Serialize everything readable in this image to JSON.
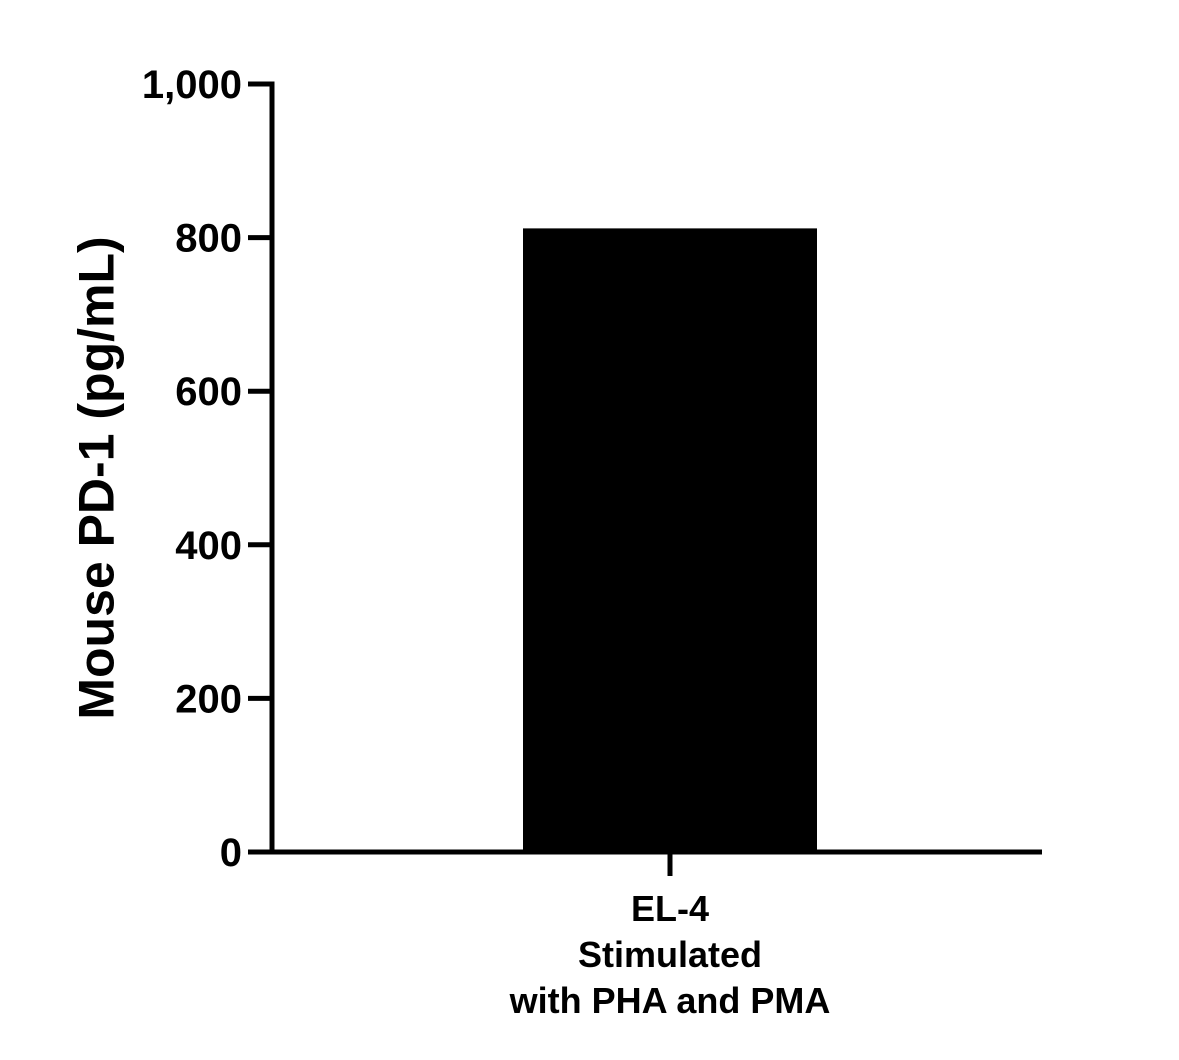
{
  "chart_data": {
    "type": "bar",
    "categories": [
      "EL-4 Stimulated with PHA and PMA"
    ],
    "category_label_lines": [
      [
        "EL-4",
        "Stimulated",
        "with PHA and PMA"
      ]
    ],
    "values": [
      812
    ],
    "title": "",
    "xlabel": "",
    "ylabel": "Mouse PD-1 (pg/mL)",
    "ylim": [
      0,
      1000
    ],
    "yticks": [
      0,
      200,
      400,
      600,
      800,
      1000
    ],
    "ytick_labels": [
      "0",
      "200",
      "400",
      "600",
      "800",
      "1,000"
    ],
    "grid": false,
    "legend": "none",
    "bar_color": "#000000",
    "axis_color": "#000000"
  }
}
